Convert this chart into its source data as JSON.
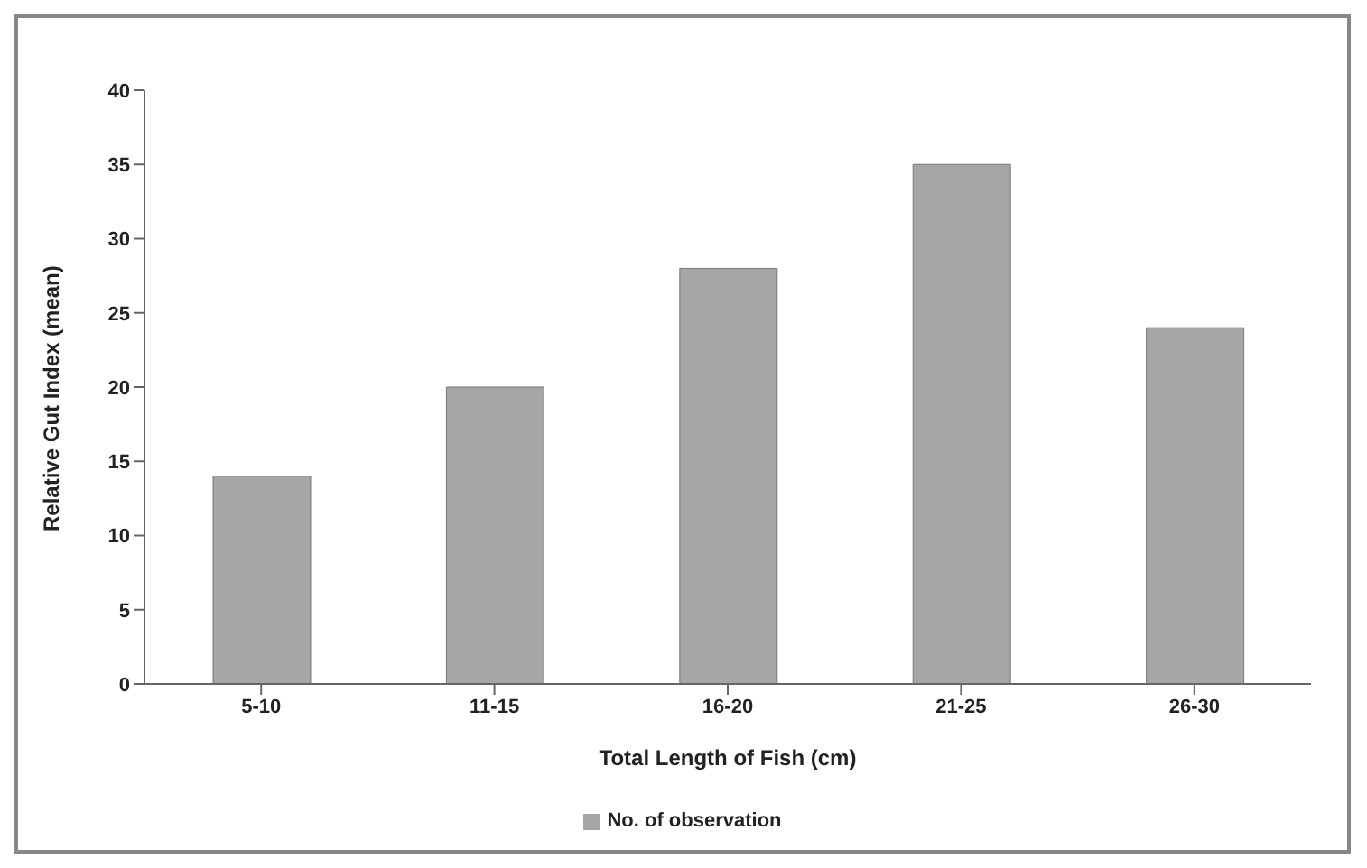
{
  "chart_data": {
    "type": "bar",
    "xlabel": "Total Length of Fish (cm)",
    "ylabel": "Relative Gut Index (mean)",
    "categories": [
      "5-10",
      "11-15",
      "16-20",
      "21-25",
      "26-30"
    ],
    "series": [
      {
        "name": "No. of observation",
        "color": "#a6a6a6",
        "values": [
          14,
          20,
          28,
          35,
          24
        ]
      }
    ],
    "ylim": [
      0,
      40
    ],
    "yticks": [
      0,
      5,
      10,
      15,
      20,
      25,
      30,
      35,
      40
    ],
    "grid": false,
    "legend": "bottom"
  }
}
